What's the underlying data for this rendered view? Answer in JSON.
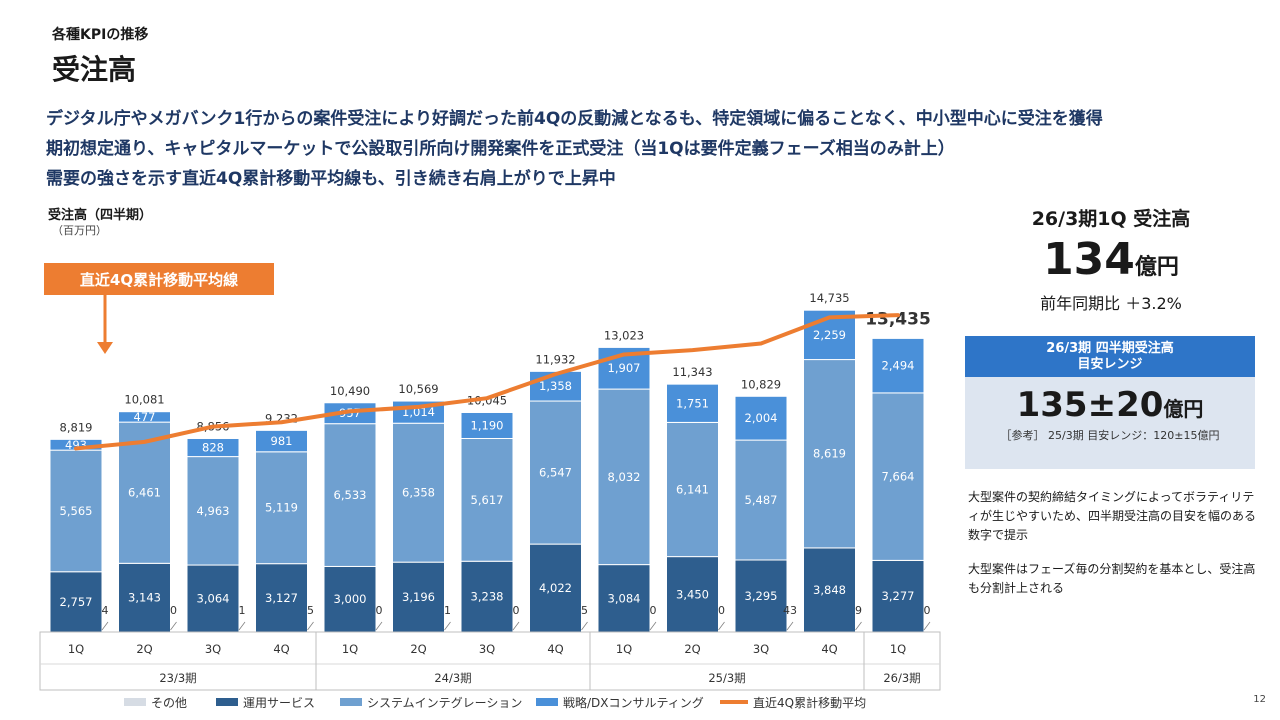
{
  "header": {
    "section": "各種KPIの推移",
    "title": "受注高"
  },
  "headlines": [
    "デジタル庁やメガバンク1行からの案件受注により好調だった前4Qの反動減となるも、特定領域に偏ることなく、中小型中心に受注を獲得",
    "期初想定通り、キャピタルマーケットで公設取引所向け開発案件を正式受注（当1Qは要件定義フェーズ相当のみ計上）",
    "需要の強さを示す直近4Q累計移動平均線も、引き続き右肩上がりで上昇中"
  ],
  "chart_data": {
    "type": "bar",
    "stacked": true,
    "title": "受注高（四半期）",
    "unit_label": "（百万円）",
    "categories": [
      "1Q",
      "2Q",
      "3Q",
      "4Q",
      "1Q",
      "2Q",
      "3Q",
      "4Q",
      "1Q",
      "2Q",
      "3Q",
      "4Q",
      "1Q"
    ],
    "groups": [
      {
        "label": "23/3期",
        "count": 4
      },
      {
        "label": "24/3期",
        "count": 4
      },
      {
        "label": "25/3期",
        "count": 4
      },
      {
        "label": "26/3期",
        "count": 1
      }
    ],
    "series": [
      {
        "name": "その他",
        "color": "#d6dce4",
        "values": [
          4,
          0,
          1,
          5,
          0,
          1,
          0,
          5,
          0,
          0,
          43,
          9,
          0
        ]
      },
      {
        "name": "運用サービス",
        "color": "#2e5e8e",
        "values": [
          2757,
          3143,
          3064,
          3127,
          3000,
          3196,
          3238,
          4022,
          3084,
          3450,
          3295,
          3848,
          3277
        ]
      },
      {
        "name": "システムインテグレーション",
        "color": "#6fa0d0",
        "values": [
          5565,
          6461,
          4963,
          5119,
          6533,
          6358,
          5617,
          6547,
          8032,
          6141,
          5487,
          8619,
          7664
        ]
      },
      {
        "name": "戦略/DXコンサルティング",
        "color": "#4a90d9",
        "values": [
          493,
          477,
          828,
          981,
          957,
          1014,
          1190,
          1358,
          1907,
          1751,
          2004,
          2259,
          2494
        ]
      }
    ],
    "totals": [
      "8,819",
      "10,081",
      "8,856",
      "9,232",
      "10,490",
      "10,569",
      "10,045",
      "11,932",
      "13,023",
      "11,343",
      "10,829",
      "14,735",
      "13,435"
    ],
    "line": {
      "name": "直近4Q累計移動平均線",
      "legend_name": "直近4Q累計移動平均",
      "color": "#ed7d31",
      "values": [
        8400,
        8700,
        9400,
        9600,
        10100,
        10300,
        10700,
        11800,
        12700,
        12900,
        13200,
        14400,
        14500
      ]
    },
    "callout": "直近4Q累計移動平均線",
    "ylim": [
      0,
      15500
    ]
  },
  "kpi": {
    "title": "26/3期1Q 受注高",
    "value": "134",
    "unit": "億円",
    "yoy": "前年同期比 ＋3.2%"
  },
  "target": {
    "head_line1": "26/3期 四半期受注高",
    "head_line2": "目安レンジ",
    "range": "135±20",
    "unit": "億円",
    "reference": "［参考］ 25/3期 目安レンジ：120±15億円"
  },
  "notes": [
    "大型案件の契約締結タイミングによってボラティリティが生じやすいため、四半期受注高の目安を幅のある数字で提示",
    "大型案件はフェーズ毎の分割契約を基本とし、受注高も分割計上される"
  ],
  "page_number": "12"
}
